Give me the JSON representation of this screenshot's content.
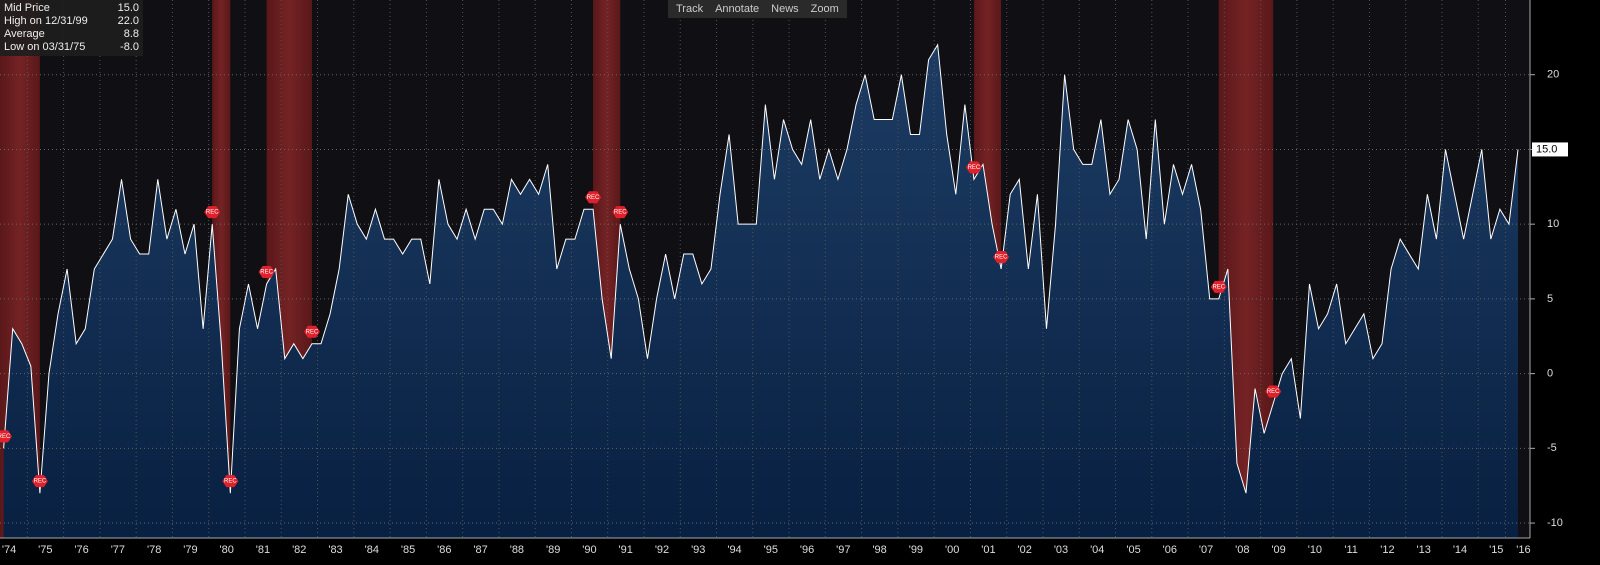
{
  "toolbar": [
    "Track",
    "Annotate",
    "News",
    "Zoom"
  ],
  "legend": [
    {
      "label": "Mid Price",
      "value": "15.0"
    },
    {
      "label": "High on 12/31/99",
      "value": "22.0"
    },
    {
      "label": "Average",
      "value": "8.8"
    },
    {
      "label": "Low on 03/31/75",
      "value": "-8.0"
    }
  ],
  "chart_data": {
    "type": "area",
    "series": [
      {
        "name": "Mid Price",
        "color": "#ffffff",
        "fill": "#12325a",
        "x": [
          1974.25,
          1974.5,
          1974.75,
          1975.0,
          1975.25,
          1975.5,
          1975.75,
          1976.0,
          1976.25,
          1976.5,
          1976.75,
          1977.0,
          1977.25,
          1977.5,
          1977.75,
          1978.0,
          1978.25,
          1978.5,
          1978.75,
          1979.0,
          1979.25,
          1979.5,
          1979.75,
          1980.0,
          1980.25,
          1980.5,
          1980.75,
          1981.0,
          1981.25,
          1981.5,
          1981.75,
          1982.0,
          1982.25,
          1982.5,
          1982.75,
          1983.0,
          1983.25,
          1983.5,
          1983.75,
          1984.0,
          1984.25,
          1984.5,
          1984.75,
          1985.0,
          1985.25,
          1985.5,
          1985.75,
          1986.0,
          1986.25,
          1986.5,
          1986.75,
          1987.0,
          1987.25,
          1987.5,
          1987.75,
          1988.0,
          1988.25,
          1988.5,
          1988.75,
          1989.0,
          1989.25,
          1989.5,
          1989.75,
          1990.0,
          1990.25,
          1990.5,
          1990.75,
          1991.0,
          1991.25,
          1991.5,
          1991.75,
          1992.0,
          1992.25,
          1992.5,
          1992.75,
          1993.0,
          1993.25,
          1993.5,
          1993.75,
          1994.0,
          1994.25,
          1994.5,
          1994.75,
          1995.0,
          1995.25,
          1995.5,
          1995.75,
          1996.0,
          1996.25,
          1996.5,
          1996.75,
          1997.0,
          1997.25,
          1997.5,
          1997.75,
          1998.0,
          1998.25,
          1998.5,
          1998.75,
          1999.0,
          1999.25,
          1999.5,
          1999.75,
          2000.0,
          2000.25,
          2000.5,
          2000.75,
          2001.0,
          2001.25,
          2001.5,
          2001.75,
          2002.0,
          2002.25,
          2002.5,
          2002.75,
          2003.0,
          2003.25,
          2003.5,
          2003.75,
          2004.0,
          2004.25,
          2004.5,
          2004.75,
          2005.0,
          2005.25,
          2005.5,
          2005.75,
          2006.0,
          2006.25,
          2006.5,
          2006.75,
          2007.0,
          2007.25,
          2007.5,
          2007.75,
          2008.0,
          2008.25,
          2008.5,
          2008.75,
          2009.0,
          2009.25,
          2009.5,
          2009.75,
          2010.0,
          2010.25,
          2010.5,
          2010.75,
          2011.0,
          2011.25,
          2011.5,
          2011.75,
          2012.0,
          2012.25,
          2012.5,
          2012.75,
          2013.0,
          2013.25,
          2013.5,
          2013.75,
          2014.0,
          2014.25,
          2014.5,
          2014.75,
          2015.0,
          2015.25,
          2015.5,
          2015.75,
          2016.0
        ],
        "values": [
          -5,
          3,
          2,
          0.5,
          -8,
          0,
          4,
          7,
          2,
          3,
          7,
          8,
          9,
          13,
          9,
          8,
          8,
          13,
          9,
          11,
          8,
          10,
          3,
          10,
          2,
          -8,
          3,
          6,
          3,
          6,
          7,
          1,
          2,
          1,
          2,
          2,
          4,
          7,
          12,
          10,
          9,
          11,
          9,
          9,
          8,
          9,
          9,
          6,
          13,
          10,
          9,
          11,
          9,
          11,
          11,
          10,
          13,
          12,
          13,
          12,
          14,
          7,
          9,
          9,
          11,
          11,
          5,
          1,
          10,
          7,
          5,
          1,
          5,
          8,
          5,
          8,
          8,
          6,
          7,
          12,
          16,
          10,
          10,
          10,
          18,
          13,
          17,
          15,
          14,
          17,
          13,
          15,
          13,
          15,
          18,
          20,
          17,
          17,
          17,
          20,
          16,
          16,
          21,
          22,
          16,
          12,
          18,
          13,
          14,
          10,
          7,
          12,
          13,
          7,
          12,
          3,
          10,
          20,
          15,
          14,
          14,
          17,
          12,
          13,
          17,
          15,
          9,
          17,
          10,
          14,
          12,
          14,
          11,
          5,
          5,
          7,
          -6,
          -8,
          -1,
          -4,
          -2,
          0,
          1,
          -3,
          6,
          3,
          4,
          6,
          2,
          3,
          4,
          1,
          2,
          7,
          9,
          8,
          7,
          12,
          9,
          15,
          12,
          9,
          12,
          15,
          9,
          11,
          10,
          15
        ]
      }
    ],
    "recession_label": "REC",
    "recessions": [
      [
        1974.0,
        1975.25
      ],
      [
        1980.0,
        1980.5
      ],
      [
        1981.5,
        1982.75
      ],
      [
        1990.5,
        1991.25
      ],
      [
        2001.0,
        2001.75
      ],
      [
        2007.75,
        2009.25
      ]
    ],
    "xlim": [
      1974.15,
      2016.33
    ],
    "ylim": [
      -11,
      25
    ],
    "yticks": [
      -10,
      -5,
      0,
      5,
      10,
      15,
      20
    ],
    "xticks": [
      {
        "value": 1974.4,
        "label": "'74"
      },
      {
        "value": 1975.4,
        "label": "'75"
      },
      {
        "value": 1976.4,
        "label": "'76"
      },
      {
        "value": 1977.4,
        "label": "'77"
      },
      {
        "value": 1978.4,
        "label": "'78"
      },
      {
        "value": 1979.4,
        "label": "'79"
      },
      {
        "value": 1980.4,
        "label": "'80"
      },
      {
        "value": 1981.4,
        "label": "'81"
      },
      {
        "value": 1982.4,
        "label": "'82"
      },
      {
        "value": 1983.4,
        "label": "'83"
      },
      {
        "value": 1984.4,
        "label": "'84"
      },
      {
        "value": 1985.4,
        "label": "'85"
      },
      {
        "value": 1986.4,
        "label": "'86"
      },
      {
        "value": 1987.4,
        "label": "'87"
      },
      {
        "value": 1988.4,
        "label": "'88"
      },
      {
        "value": 1989.4,
        "label": "'89"
      },
      {
        "value": 1990.4,
        "label": "'90"
      },
      {
        "value": 1991.4,
        "label": "'91"
      },
      {
        "value": 1992.4,
        "label": "'92"
      },
      {
        "value": 1993.4,
        "label": "'93"
      },
      {
        "value": 1994.4,
        "label": "'94"
      },
      {
        "value": 1995.4,
        "label": "'95"
      },
      {
        "value": 1996.4,
        "label": "'96"
      },
      {
        "value": 1997.4,
        "label": "'97"
      },
      {
        "value": 1998.4,
        "label": "'98"
      },
      {
        "value": 1999.4,
        "label": "'99"
      },
      {
        "value": 2000.4,
        "label": "'00"
      },
      {
        "value": 2001.4,
        "label": "'01"
      },
      {
        "value": 2002.4,
        "label": "'02"
      },
      {
        "value": 2003.4,
        "label": "'03"
      },
      {
        "value": 2004.4,
        "label": "'04"
      },
      {
        "value": 2005.4,
        "label": "'05"
      },
      {
        "value": 2006.4,
        "label": "'06"
      },
      {
        "value": 2007.4,
        "label": "'07"
      },
      {
        "value": 2008.4,
        "label": "'08"
      },
      {
        "value": 2009.4,
        "label": "'09"
      },
      {
        "value": 2010.4,
        "label": "'10"
      },
      {
        "value": 2011.4,
        "label": "'11"
      },
      {
        "value": 2012.4,
        "label": "'12"
      },
      {
        "value": 2013.4,
        "label": "'13"
      },
      {
        "value": 2014.4,
        "label": "'14"
      },
      {
        "value": 2015.4,
        "label": "'15"
      },
      {
        "value": 2016.15,
        "label": "'16"
      }
    ],
    "grid": true
  }
}
